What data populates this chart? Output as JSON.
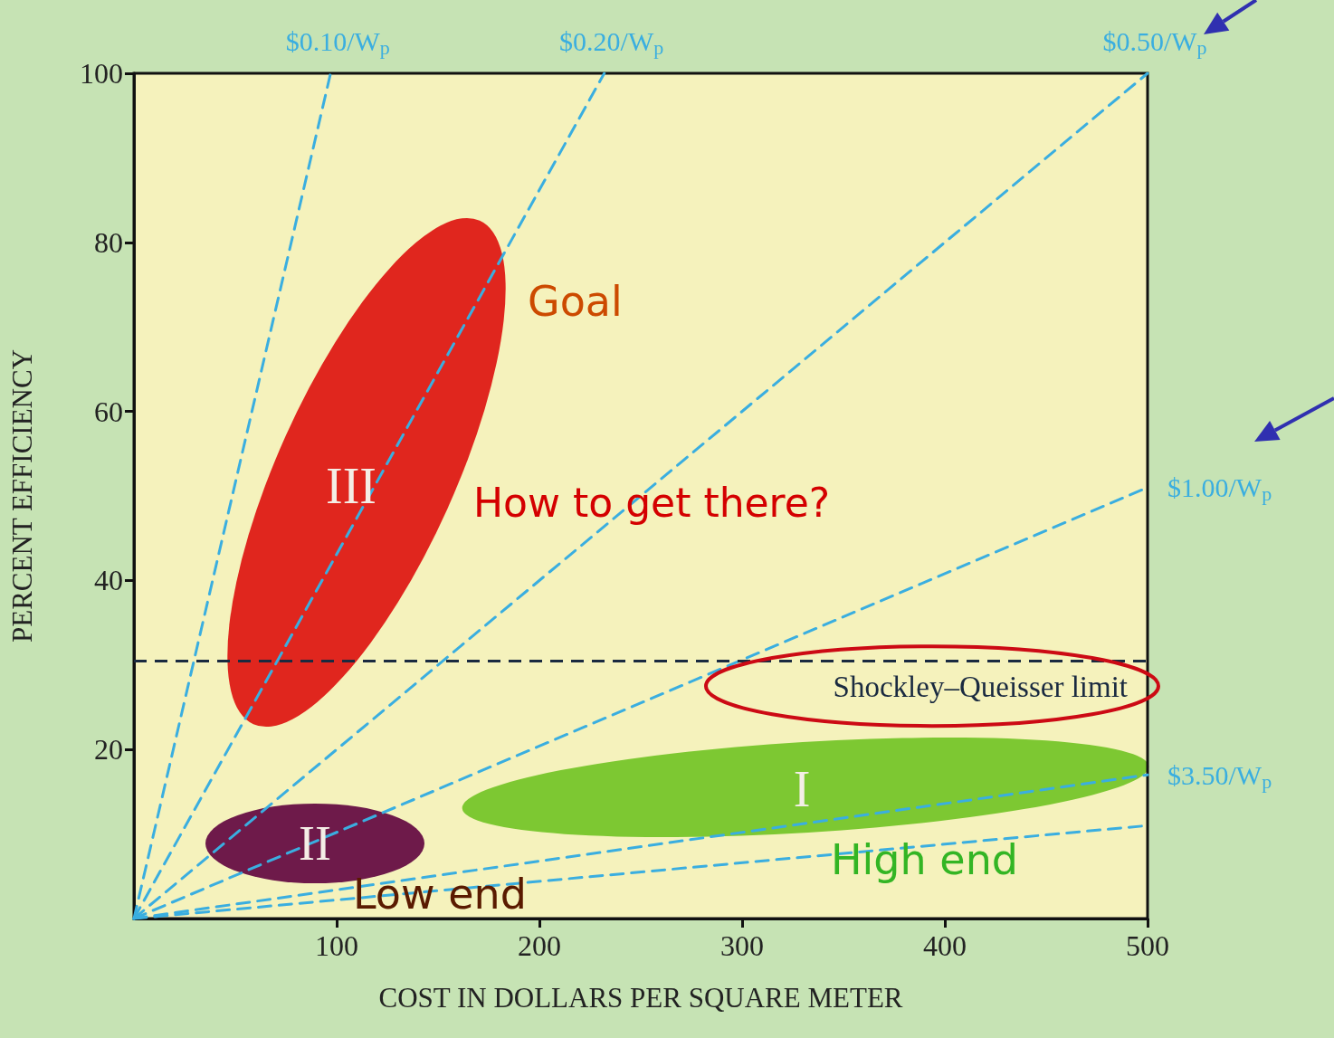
{
  "chart_data": {
    "type": "line",
    "xlabel": "COST IN DOLLARS PER SQUARE METER",
    "ylabel": "PERCENT EFFICIENCY",
    "xlim": [
      0,
      500
    ],
    "xticks": [
      100,
      200,
      300,
      400,
      500
    ],
    "ylim": [
      0,
      100
    ],
    "yticks": [
      20,
      40,
      60,
      80,
      100
    ],
    "grid": false,
    "legend": false,
    "marker": "none",
    "line_style": "dashed",
    "series": [
      {
        "name": "$0.10/W$_{p}$",
        "color": "#3aaee0",
        "x": [
          0,
          97
        ],
        "values": [
          0,
          100
        ]
      },
      {
        "name": "$0.20/W$_{p}$",
        "color": "#3aaee0",
        "x": [
          0,
          232
        ],
        "values": [
          0,
          100
        ]
      },
      {
        "name": "$0.50/W$_{p}$",
        "color": "#3aaee0",
        "x": [
          0,
          500
        ],
        "values": [
          0,
          100
        ]
      },
      {
        "name": "$1.00/W$_{p}$",
        "color": "#3aaee0",
        "x": [
          0,
          500
        ],
        "values": [
          0,
          51
        ]
      },
      {
        "name": "$3.50/W$_{p}$",
        "color": "#3aaee0",
        "x": [
          0,
          500
        ],
        "values": [
          0,
          17
        ]
      },
      {
        "color": "#3aaee0",
        "x": [
          0,
          500
        ],
        "values": [
          0,
          11
        ]
      }
    ],
    "ref_lines": [
      {
        "axis": "y",
        "value": 30.5,
        "label": "Shockley–Queisser limit",
        "color": "#1a2a40",
        "line_style": "dashed"
      }
    ],
    "annotations": [
      "III",
      "II",
      "I",
      "Goal",
      "How to get there?",
      "High end",
      "Low end"
    ]
  }
}
